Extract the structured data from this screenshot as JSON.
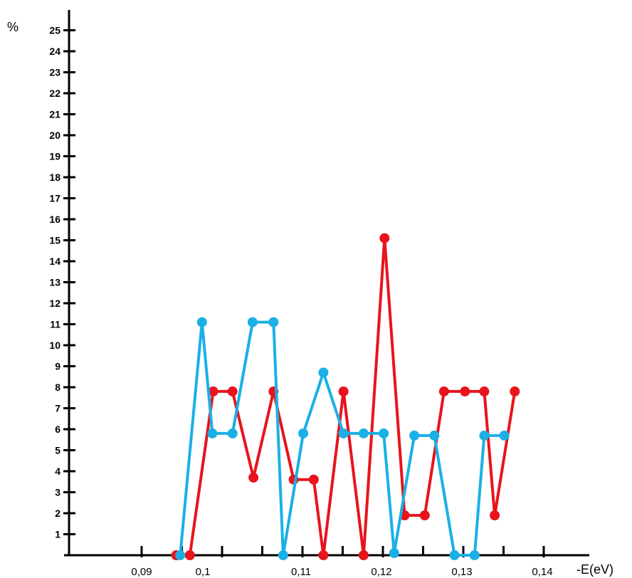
{
  "chart_data": {
    "type": "line",
    "title": "",
    "xlabel": "-E(eV)",
    "ylabel": "%",
    "y_ticks": [
      "1",
      "2",
      "3",
      "4",
      "5",
      "6",
      "7",
      "8",
      "9",
      "10",
      "11",
      "12",
      "13",
      "14",
      "15",
      "16",
      "17",
      "18",
      "19",
      "20",
      "21",
      "22",
      "23",
      "24",
      "25"
    ],
    "x_ticks": [
      "0,09",
      "0,1",
      "0,11",
      "0,12",
      "0,13",
      "0,14"
    ],
    "xlim": [
      0.0855,
      0.1445
    ],
    "ylim": [
      0,
      26
    ],
    "grid": false,
    "legend": "none",
    "series": [
      {
        "color": "#e8141c",
        "points": [
          [
            0.0943,
            0
          ],
          [
            0.096,
            0
          ],
          [
            0.0989,
            7.8
          ],
          [
            0.1013,
            7.8
          ],
          [
            0.1039,
            3.7
          ],
          [
            0.1064,
            7.8
          ],
          [
            0.1089,
            3.6
          ],
          [
            0.1114,
            3.6
          ],
          [
            0.1126,
            0
          ],
          [
            0.1151,
            7.8
          ],
          [
            0.1176,
            0
          ],
          [
            0.1202,
            15.1
          ],
          [
            0.1227,
            1.9
          ],
          [
            0.1252,
            1.9
          ],
          [
            0.1276,
            7.8
          ],
          [
            0.1302,
            7.8
          ],
          [
            0.1326,
            7.8
          ],
          [
            0.1339,
            1.9
          ],
          [
            0.1364,
            7.8
          ]
        ]
      },
      {
        "color": "#1ab0e6",
        "points": [
          [
            0.0948,
            0
          ],
          [
            0.0975,
            11.1
          ],
          [
            0.0988,
            5.8
          ],
          [
            0.1013,
            5.8
          ],
          [
            0.1038,
            11.1
          ],
          [
            0.1064,
            11.1
          ],
          [
            0.1076,
            0
          ],
          [
            0.1101,
            5.8
          ],
          [
            0.1126,
            8.7
          ],
          [
            0.1151,
            5.8
          ],
          [
            0.1176,
            5.8
          ],
          [
            0.1201,
            5.8
          ],
          [
            0.1214,
            0.1
          ],
          [
            0.1239,
            5.7
          ],
          [
            0.1264,
            5.7
          ],
          [
            0.1289,
            0
          ],
          [
            0.1314,
            0
          ],
          [
            0.1326,
            5.7
          ],
          [
            0.1351,
            5.7
          ]
        ]
      }
    ]
  }
}
